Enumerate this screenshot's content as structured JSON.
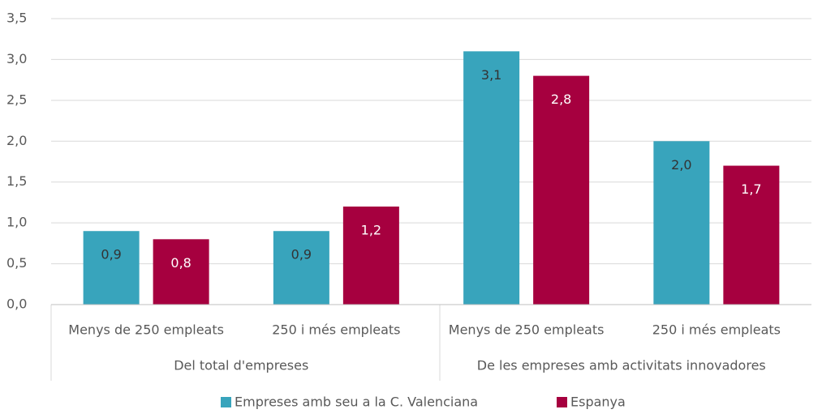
{
  "chart_data": {
    "type": "bar",
    "groups": [
      {
        "name": "Del total d'empreses",
        "categories": [
          "Menys de 250 empleats",
          "250 i més empleats"
        ]
      },
      {
        "name": "De les empreses amb activitats innovadores",
        "categories": [
          "Menys de 250 empleats",
          "250 i més empleats"
        ]
      }
    ],
    "series": [
      {
        "name": "Empreses amb seu a la C. Valenciana",
        "color": "#38a4bc",
        "values": [
          0.9,
          0.9,
          3.1,
          2.0
        ],
        "value_labels": [
          "0,9",
          "0,9",
          "3,1",
          "2,0"
        ]
      },
      {
        "name": "Espanya",
        "color": "#a6003f",
        "values": [
          0.8,
          1.2,
          2.8,
          1.7
        ],
        "value_labels": [
          "0,8",
          "1,2",
          "2,8",
          "1,7"
        ]
      }
    ],
    "ylim": [
      0,
      3.5
    ],
    "yticks": [
      {
        "value": 0,
        "label": "0,0"
      },
      {
        "value": 0.5,
        "label": "0,5"
      },
      {
        "value": 1,
        "label": "1,0"
      },
      {
        "value": 1.5,
        "label": "1,5"
      },
      {
        "value": 2,
        "label": "2,0"
      },
      {
        "value": 2.5,
        "label": "2,5"
      },
      {
        "value": 3,
        "label": "3,0"
      },
      {
        "value": 3.5,
        "label": "3,5"
      }
    ],
    "grid": true,
    "legend": "bottom"
  }
}
